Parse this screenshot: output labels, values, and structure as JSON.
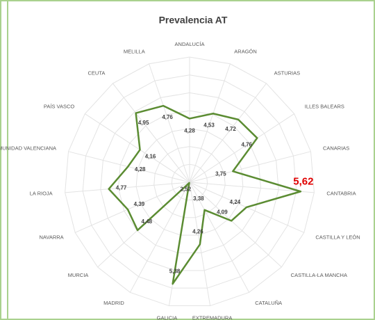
{
  "chart_data": {
    "type": "radar",
    "title": "Prevalencia AT",
    "categories": [
      "ANDALUCÍA",
      "ARAGÓN",
      "ASTURIAS",
      "ILLES BALEARS",
      "CANARIAS",
      "CANTABRIA",
      "CASTILLA Y LEÓN",
      "CASTILLA-LA MANCHA",
      "CATALUÑA",
      "EXTREMADURA",
      "GALICIA",
      "MADRID",
      "MURCIA",
      "NAVARRA",
      "LA RIOJA",
      "COMUNIDAD VALENCIANA",
      "PAÍS VASCO",
      "CEUTA",
      "MELILLA"
    ],
    "values": [
      4.28,
      4.53,
      4.72,
      4.76,
      3.75,
      5.62,
      4.24,
      4.09,
      3.38,
      4.26,
      5.38,
      2.52,
      4.48,
      4.39,
      4.77,
      4.28,
      4.16,
      4.95,
      4.76
    ],
    "value_labels": [
      "4,28",
      "4,53",
      "4,72",
      "4,76",
      "3,75",
      "5,62",
      "4,24",
      "4,09",
      "3,38",
      "4,26",
      "5,38",
      "2,52",
      "4,48",
      "4,39",
      "4,77",
      "4,28",
      "4,16",
      "4,95",
      "4,76"
    ],
    "color": "#5b8c32",
    "highlight_index": 5,
    "highlight_color": "#e00000",
    "ylim": [
      2.5,
      6
    ],
    "yticks": [
      2.5,
      3,
      3.5,
      4,
      4.5,
      5,
      5.5,
      6
    ],
    "grid": true
  }
}
